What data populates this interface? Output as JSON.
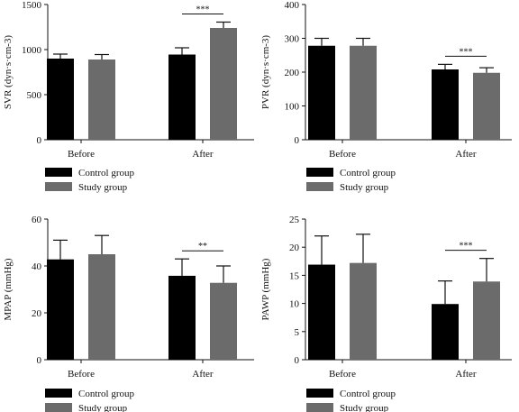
{
  "colors": {
    "control": "#000000",
    "study": "#6b6b6b",
    "axis": "#111111"
  },
  "chart_data": [
    {
      "type": "bar",
      "categories": [
        "Before",
        "After"
      ],
      "ylabel": "SVR (dyn·s·cm-3)",
      "ylim": [
        0,
        1500
      ],
      "yticks": [
        0,
        500,
        1000,
        1500
      ],
      "series": [
        {
          "name": "Control group",
          "values": [
            900,
            945
          ],
          "errors": [
            50,
            75
          ]
        },
        {
          "name": "Study group",
          "values": [
            890,
            1240
          ],
          "errors": [
            55,
            65
          ]
        }
      ],
      "significance": [
        {
          "category": "After",
          "label": "***"
        }
      ],
      "legend": "bottom-left"
    },
    {
      "type": "bar",
      "categories": [
        "Before",
        "After"
      ],
      "ylabel": "PVR (dyn·s·cm-3)",
      "ylim": [
        0,
        400
      ],
      "yticks": [
        0,
        100,
        200,
        300,
        400
      ],
      "series": [
        {
          "name": "Control group",
          "values": [
            278,
            208
          ],
          "errors": [
            22,
            15
          ]
        },
        {
          "name": "Study group",
          "values": [
            278,
            198
          ],
          "errors": [
            22,
            15
          ]
        }
      ],
      "significance": [
        {
          "category": "After",
          "label": "***"
        }
      ],
      "legend": "bottom-left"
    },
    {
      "type": "bar",
      "categories": [
        "Before",
        "After"
      ],
      "ylabel": "MPAP (mmHg)",
      "ylim": [
        0,
        60
      ],
      "yticks": [
        0,
        20,
        40,
        60
      ],
      "series": [
        {
          "name": "Control group",
          "values": [
            42.8,
            35.8
          ],
          "errors": [
            8.2,
            7.2
          ]
        },
        {
          "name": "Study group",
          "values": [
            45,
            32.8
          ],
          "errors": [
            8,
            7.2
          ]
        }
      ],
      "significance": [
        {
          "category": "After",
          "label": "**"
        }
      ],
      "legend": "bottom-left"
    },
    {
      "type": "bar",
      "categories": [
        "Before",
        "After"
      ],
      "ylabel": "PAWP (mmHg)",
      "ylim": [
        0,
        25
      ],
      "yticks": [
        0,
        5,
        10,
        15,
        20,
        25
      ],
      "series": [
        {
          "name": "Control group",
          "values": [
            16.9,
            9.9
          ],
          "errors": [
            5.1,
            4.1
          ]
        },
        {
          "name": "Study group",
          "values": [
            17.2,
            13.9
          ],
          "errors": [
            5.1,
            4.1
          ]
        }
      ],
      "significance": [
        {
          "category": "After",
          "label": "***"
        }
      ],
      "legend": "bottom-left"
    }
  ]
}
